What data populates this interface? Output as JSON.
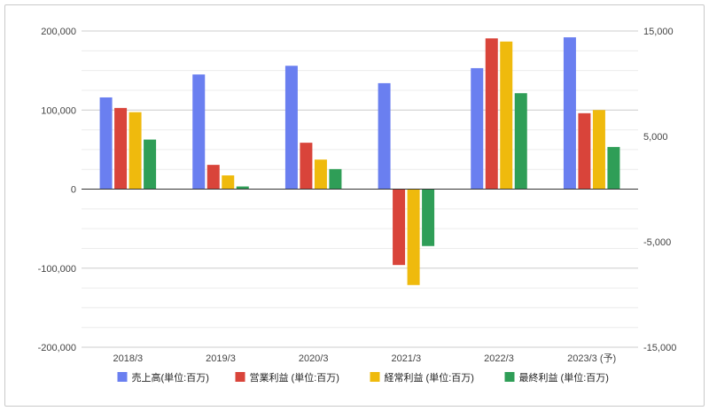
{
  "chart_data": {
    "type": "bar",
    "categories": [
      "2018/3",
      "2019/3",
      "2020/3",
      "2021/3",
      "2022/3",
      "2023/3 (予)"
    ],
    "series": [
      {
        "name": "売上高(単位:百万)",
        "color": "#6a7ff0",
        "axis": "left",
        "values": [
          116000,
          145000,
          156000,
          134000,
          153000,
          192000
        ]
      },
      {
        "name": "営業利益 (単位:百万)",
        "color": "#d9443a",
        "axis": "right",
        "values": [
          7700,
          2300,
          4400,
          -7200,
          14300,
          7200
        ]
      },
      {
        "name": "経常利益 (単位:百万)",
        "color": "#efba0d",
        "axis": "right",
        "values": [
          7300,
          1300,
          2800,
          -9100,
          14000,
          7500
        ]
      },
      {
        "name": "最終利益 (単位:百万)",
        "color": "#2f9e57",
        "axis": "right",
        "values": [
          4700,
          250,
          1900,
          -5400,
          9100,
          4000
        ]
      }
    ],
    "y_left": {
      "min": -200000,
      "max": 200000,
      "ticks": [
        200000,
        100000,
        0,
        -100000,
        -200000
      ],
      "tick_labels": [
        "200,000",
        "100,000",
        "0",
        "-100,000",
        "-200,000"
      ]
    },
    "y_right": {
      "min": -15000,
      "max": 15000,
      "ticks": [
        15000,
        5000,
        -5000,
        -15000
      ],
      "tick_labels": [
        "15,000",
        "5,000",
        "-5,000",
        "-15,000"
      ]
    },
    "grid": true,
    "legend_position": "bottom"
  }
}
